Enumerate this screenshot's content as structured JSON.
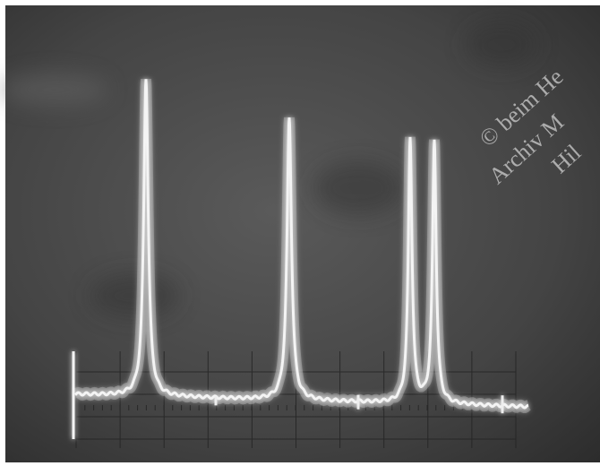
{
  "watermark": {
    "lines": [
      "© beim He",
      "Archiv M",
      "Hil"
    ]
  }
}
